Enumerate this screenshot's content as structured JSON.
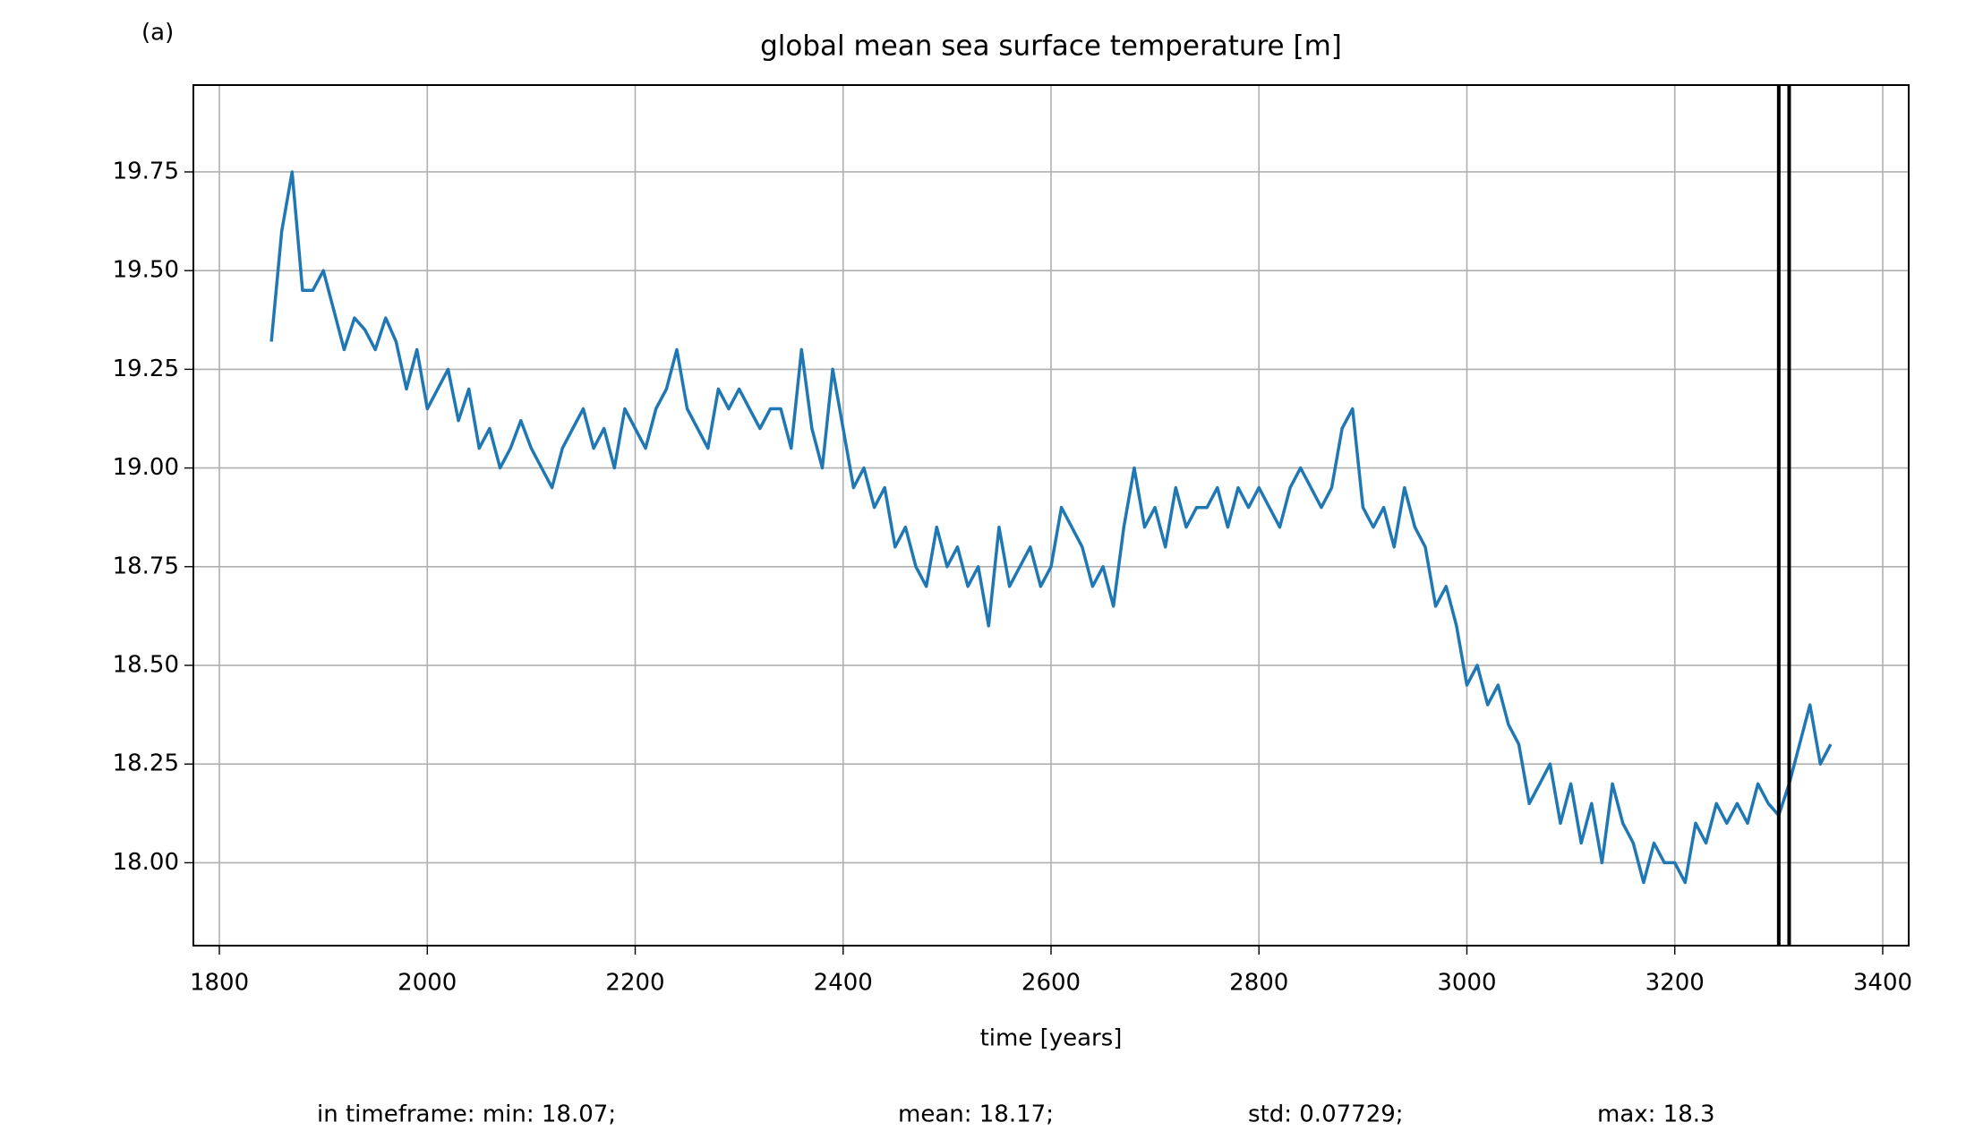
{
  "chart_data": {
    "type": "line",
    "panel_label": "(a)",
    "title": "global mean sea surface temperature [m]",
    "x_label": "time [years]",
    "xlim": [
      1775,
      3425
    ],
    "ylim": [
      17.79,
      19.97
    ],
    "xticks": [
      1800,
      2000,
      2200,
      2400,
      2600,
      2800,
      3000,
      3200,
      3400
    ],
    "yticks": [
      {
        "value": 18,
        "label": "18.00"
      },
      18.25,
      {
        "value": 18.5,
        "label": "18.50"
      },
      18.75,
      {
        "value": 19,
        "label": "19.00"
      },
      19.25,
      {
        "value": 19.5,
        "label": "19.50"
      },
      19.75
    ],
    "grid": true,
    "x": [
      1850,
      1860,
      1870,
      1880,
      1890,
      1900,
      1910,
      1920,
      1930,
      1940,
      1950,
      1960,
      1970,
      1980,
      1990,
      2000,
      2010,
      2020,
      2030,
      2040,
      2050,
      2060,
      2070,
      2080,
      2090,
      2100,
      2110,
      2120,
      2130,
      2140,
      2150,
      2160,
      2170,
      2180,
      2190,
      2200,
      2210,
      2220,
      2230,
      2240,
      2250,
      2260,
      2270,
      2280,
      2290,
      2300,
      2310,
      2320,
      2330,
      2340,
      2350,
      2360,
      2370,
      2380,
      2390,
      2400,
      2410,
      2420,
      2430,
      2440,
      2450,
      2460,
      2470,
      2480,
      2490,
      2500,
      2510,
      2520,
      2530,
      2540,
      2550,
      2560,
      2570,
      2580,
      2590,
      2600,
      2610,
      2620,
      2630,
      2640,
      2650,
      2660,
      2670,
      2680,
      2690,
      2700,
      2710,
      2720,
      2730,
      2740,
      2750,
      2760,
      2770,
      2780,
      2790,
      2800,
      2810,
      2820,
      2830,
      2840,
      2850,
      2860,
      2870,
      2880,
      2890,
      2900,
      2910,
      2920,
      2930,
      2940,
      2950,
      2960,
      2970,
      2980,
      2990,
      3000,
      3010,
      3020,
      3030,
      3040,
      3050,
      3060,
      3070,
      3080,
      3090,
      3100,
      3110,
      3120,
      3130,
      3140,
      3150,
      3160,
      3170,
      3180,
      3190,
      3200,
      3210,
      3220,
      3230,
      3240,
      3250,
      3260,
      3270,
      3280,
      3290,
      3300,
      3310,
      3320,
      3330,
      3340,
      3350
    ],
    "series": [
      {
        "color": "#1f77b4",
        "values": [
          19.32,
          19.6,
          19.75,
          19.45,
          19.45,
          19.5,
          19.4,
          19.3,
          19.38,
          19.35,
          19.3,
          19.38,
          19.32,
          19.2,
          19.3,
          19.15,
          19.2,
          19.25,
          19.12,
          19.2,
          19.05,
          19.1,
          19.0,
          19.05,
          19.12,
          19.05,
          19.0,
          18.95,
          19.05,
          19.1,
          19.15,
          19.05,
          19.1,
          19.0,
          19.15,
          19.1,
          19.05,
          19.15,
          19.2,
          19.3,
          19.15,
          19.1,
          19.05,
          19.2,
          19.15,
          19.2,
          19.15,
          19.1,
          19.15,
          19.15,
          19.05,
          19.3,
          19.1,
          19.0,
          19.25,
          19.1,
          18.95,
          19.0,
          18.9,
          18.95,
          18.8,
          18.85,
          18.75,
          18.7,
          18.85,
          18.75,
          18.8,
          18.7,
          18.75,
          18.6,
          18.85,
          18.7,
          18.75,
          18.8,
          18.7,
          18.75,
          18.9,
          18.85,
          18.8,
          18.7,
          18.75,
          18.65,
          18.85,
          19.0,
          18.85,
          18.9,
          18.8,
          18.95,
          18.85,
          18.9,
          18.9,
          18.95,
          18.85,
          18.95,
          18.9,
          18.95,
          18.9,
          18.85,
          18.95,
          19.0,
          18.95,
          18.9,
          18.95,
          19.1,
          19.15,
          18.9,
          18.85,
          18.9,
          18.8,
          18.95,
          18.85,
          18.8,
          18.65,
          18.7,
          18.6,
          18.45,
          18.5,
          18.4,
          18.45,
          18.35,
          18.3,
          18.15,
          18.2,
          18.25,
          18.1,
          18.2,
          18.05,
          18.15,
          18.0,
          18.2,
          18.1,
          18.05,
          17.95,
          18.05,
          18.0,
          18.0,
          17.95,
          18.1,
          18.05,
          18.15,
          18.1,
          18.15,
          18.1,
          18.2,
          18.15,
          18.12,
          18.2,
          18.3,
          18.4,
          18.25,
          18.3
        ]
      }
    ],
    "vlines": {
      "color": "#000000",
      "values": [
        3300,
        3310
      ]
    },
    "stats": [
      "in timeframe: min: 18.07;",
      "mean: 18.17;",
      "std: 0.07729;",
      "max: 18.3"
    ]
  }
}
